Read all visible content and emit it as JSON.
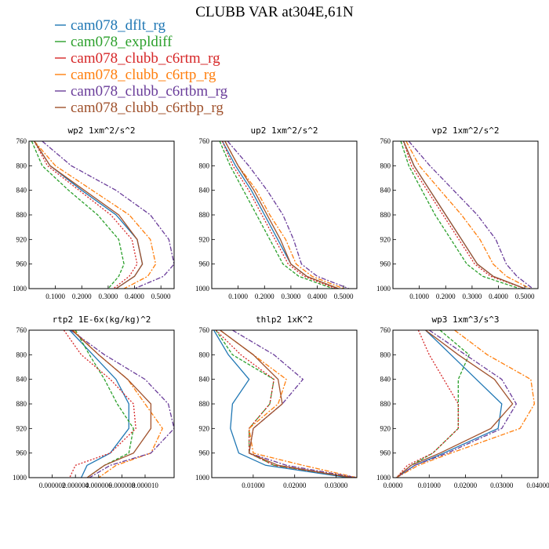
{
  "figure": {
    "title": "CLUBB VAR at304E,61N"
  },
  "legend": [
    {
      "name": "cam078_dflt_rg",
      "color": "#1f77b4",
      "dash": ""
    },
    {
      "name": "cam078_expldiff",
      "color": "#2ca02c",
      "dash": "4,2"
    },
    {
      "name": "cam078_clubb_c6rtm_rg",
      "color": "#d62728",
      "dash": "2,2"
    },
    {
      "name": "cam078_clubb_c6rtp_rg",
      "color": "#ff7f0e",
      "dash": "6,2,2,2"
    },
    {
      "name": "cam078_clubb_c6rtbm_rg",
      "color": "#6a3d9a",
      "dash": "6,2,2,2"
    },
    {
      "name": "cam078_clubb_c6rtbp_rg",
      "color": "#a0522d",
      "dash": ""
    }
  ],
  "chart_data": [
    {
      "type": "line",
      "title": "wp2  1xm^2/s^2",
      "xlim": [
        0,
        0.55
      ],
      "xticks": [
        0.1,
        0.2,
        0.3,
        0.4,
        0.5
      ],
      "xticklabels": [
        "0.1000",
        "0.2000",
        "0.3000",
        "0.4000",
        "0.5000"
      ],
      "ylim": [
        760,
        1000
      ],
      "yticks": [
        760,
        800,
        840,
        880,
        920,
        960,
        1000
      ],
      "y": [
        760,
        800,
        840,
        880,
        920,
        960,
        980,
        1000
      ],
      "series": [
        {
          "name": "cam078_dflt_rg",
          "values": [
            0.02,
            0.08,
            0.2,
            0.33,
            0.41,
            0.43,
            0.4,
            0.33
          ]
        },
        {
          "name": "cam078_expldiff",
          "values": [
            0.01,
            0.05,
            0.15,
            0.26,
            0.34,
            0.36,
            0.34,
            0.3
          ]
        },
        {
          "name": "cam078_clubb_c6rtm_rg",
          "values": [
            0.02,
            0.07,
            0.19,
            0.31,
            0.39,
            0.41,
            0.38,
            0.32
          ]
        },
        {
          "name": "cam078_clubb_c6rtp_rg",
          "values": [
            0.02,
            0.1,
            0.24,
            0.38,
            0.46,
            0.48,
            0.45,
            0.36
          ]
        },
        {
          "name": "cam078_clubb_c6rtbm_rg",
          "values": [
            0.05,
            0.16,
            0.33,
            0.46,
            0.53,
            0.55,
            0.51,
            0.4
          ]
        },
        {
          "name": "cam078_clubb_c6rtbp_rg",
          "values": [
            0.02,
            0.08,
            0.21,
            0.34,
            0.41,
            0.43,
            0.4,
            0.33
          ]
        }
      ]
    },
    {
      "type": "line",
      "title": "up2  1xm^2/s^2",
      "xlim": [
        0,
        0.55
      ],
      "xticks": [
        0.1,
        0.2,
        0.3,
        0.4,
        0.5
      ],
      "xticklabels": [
        "0.1000",
        "0.2000",
        "0.3000",
        "0.4000",
        "0.5000"
      ],
      "ylim": [
        760,
        1000
      ],
      "yticks": [
        760,
        800,
        840,
        880,
        920,
        960,
        1000
      ],
      "y": [
        760,
        800,
        840,
        880,
        920,
        960,
        980,
        1000
      ],
      "series": [
        {
          "name": "cam078_dflt_rg",
          "values": [
            0.04,
            0.09,
            0.15,
            0.2,
            0.25,
            0.3,
            0.36,
            0.48
          ]
        },
        {
          "name": "cam078_expldiff",
          "values": [
            0.03,
            0.07,
            0.12,
            0.17,
            0.22,
            0.27,
            0.33,
            0.46
          ]
        },
        {
          "name": "cam078_clubb_c6rtm_rg",
          "values": [
            0.04,
            0.08,
            0.14,
            0.19,
            0.24,
            0.29,
            0.35,
            0.47
          ]
        },
        {
          "name": "cam078_clubb_c6rtp_rg",
          "values": [
            0.05,
            0.1,
            0.17,
            0.22,
            0.28,
            0.32,
            0.38,
            0.5
          ]
        },
        {
          "name": "cam078_clubb_c6rtbm_rg",
          "values": [
            0.06,
            0.14,
            0.21,
            0.27,
            0.31,
            0.34,
            0.4,
            0.52
          ]
        },
        {
          "name": "cam078_clubb_c6rtbp_rg",
          "values": [
            0.05,
            0.1,
            0.16,
            0.21,
            0.26,
            0.3,
            0.36,
            0.48
          ]
        }
      ]
    },
    {
      "type": "line",
      "title": "vp2  1xm^2/s^2",
      "xlim": [
        0,
        0.55
      ],
      "xticks": [
        0.1,
        0.2,
        0.3,
        0.4,
        0.5
      ],
      "xticklabels": [
        "0.1000",
        "0.2000",
        "0.3000",
        "0.4000",
        "0.5000"
      ],
      "ylim": [
        760,
        1000
      ],
      "yticks": [
        760,
        800,
        840,
        880,
        920,
        960,
        1000
      ],
      "y": [
        760,
        800,
        840,
        880,
        920,
        960,
        980,
        1000
      ],
      "series": [
        {
          "name": "cam078_dflt_rg",
          "values": [
            0.04,
            0.08,
            0.14,
            0.2,
            0.26,
            0.32,
            0.38,
            0.5
          ]
        },
        {
          "name": "cam078_expldiff",
          "values": [
            0.03,
            0.06,
            0.11,
            0.16,
            0.22,
            0.28,
            0.34,
            0.48
          ]
        },
        {
          "name": "cam078_clubb_c6rtm_rg",
          "values": [
            0.04,
            0.07,
            0.13,
            0.19,
            0.25,
            0.31,
            0.37,
            0.5
          ]
        },
        {
          "name": "cam078_clubb_c6rtp_rg",
          "values": [
            0.05,
            0.1,
            0.18,
            0.26,
            0.33,
            0.38,
            0.43,
            0.52
          ]
        },
        {
          "name": "cam078_clubb_c6rtbm_rg",
          "values": [
            0.06,
            0.14,
            0.23,
            0.32,
            0.39,
            0.43,
            0.47,
            0.53
          ]
        },
        {
          "name": "cam078_clubb_c6rtbp_rg",
          "values": [
            0.04,
            0.08,
            0.14,
            0.2,
            0.26,
            0.32,
            0.38,
            0.5
          ]
        }
      ]
    },
    {
      "type": "line",
      "title": "rtp2  1E-6x(kg/kg)^2",
      "xlim": [
        0,
        1.25e-05
      ],
      "xticks": [
        2e-06,
        4e-06,
        6e-06,
        8e-06,
        1e-05
      ],
      "xticklabels": [
        "0.000002",
        "0.000004",
        "0.000006",
        "0.000008",
        "0.000010"
      ],
      "ylim": [
        760,
        1000
      ],
      "yticks": [
        760,
        800,
        840,
        880,
        920,
        960,
        1000
      ],
      "y": [
        760,
        800,
        840,
        880,
        920,
        960,
        980,
        1000
      ],
      "series": [
        {
          "name": "cam078_dflt_rg",
          "values": [
            3.5e-06,
            5.5e-06,
            7.5e-06,
            8.6e-06,
            8.6e-06,
            7e-06,
            5e-06,
            4.5e-06
          ]
        },
        {
          "name": "cam078_expldiff",
          "values": [
            4e-06,
            5.2e-06,
            6.5e-06,
            7.6e-06,
            9e-06,
            8.6e-06,
            6.5e-06,
            5e-06
          ]
        },
        {
          "name": "cam078_clubb_c6rtm_rg",
          "values": [
            3e-06,
            4.5e-06,
            7e-06,
            9e-06,
            9.2e-06,
            7e-06,
            4e-06,
            3.5e-06
          ]
        },
        {
          "name": "cam078_clubb_c6rtp_rg",
          "values": [
            3.8e-06,
            6e-06,
            8.5e-06,
            1e-05,
            1.15e-05,
            1.05e-05,
            7.5e-06,
            6e-06
          ]
        },
        {
          "name": "cam078_clubb_c6rtbm_rg",
          "values": [
            3.6e-06,
            6.5e-06,
            1e-05,
            1.2e-05,
            1.25e-05,
            1.05e-05,
            7e-06,
            5.2e-06
          ]
        },
        {
          "name": "cam078_clubb_c6rtbp_rg",
          "values": [
            3.7e-06,
            6e-06,
            8.5e-06,
            1.05e-05,
            1.05e-05,
            9e-06,
            6.5e-06,
            5e-06
          ]
        }
      ]
    },
    {
      "type": "line",
      "title": "thlp2  1xK^2",
      "xlim": [
        0,
        0.035
      ],
      "xticks": [
        0.01,
        0.02,
        0.03
      ],
      "xticklabels": [
        "0.01000",
        "0.02000",
        "0.03000"
      ],
      "ylim": [
        760,
        1000
      ],
      "yticks": [
        760,
        800,
        840,
        880,
        920,
        960,
        1000
      ],
      "y": [
        760,
        800,
        840,
        880,
        920,
        960,
        980,
        1000
      ],
      "series": [
        {
          "name": "cam078_dflt_rg",
          "values": [
            0.0005,
            0.004,
            0.009,
            0.005,
            0.0045,
            0.0065,
            0.013,
            0.033
          ]
        },
        {
          "name": "cam078_expldiff",
          "values": [
            0.001,
            0.005,
            0.015,
            0.014,
            0.009,
            0.009,
            0.015,
            0.034
          ]
        },
        {
          "name": "cam078_clubb_c6rtm_rg",
          "values": [
            0.001,
            0.007,
            0.015,
            0.014,
            0.009,
            0.009,
            0.015,
            0.034
          ]
        },
        {
          "name": "cam078_clubb_c6rtp_rg",
          "values": [
            0.002,
            0.01,
            0.018,
            0.016,
            0.009,
            0.01,
            0.022,
            0.035
          ]
        },
        {
          "name": "cam078_clubb_c6rtbm_rg",
          "values": [
            0.005,
            0.015,
            0.022,
            0.017,
            0.01,
            0.009,
            0.018,
            0.035
          ]
        },
        {
          "name": "cam078_clubb_c6rtbp_rg",
          "values": [
            0.002,
            0.01,
            0.016,
            0.017,
            0.01,
            0.009,
            0.016,
            0.034
          ]
        }
      ]
    },
    {
      "type": "line",
      "title": "wp3  1xm^3/s^3",
      "xlim": [
        0,
        0.04
      ],
      "xticks": [
        0,
        0.01,
        0.02,
        0.03,
        0.04
      ],
      "xticklabels": [
        "0.0000",
        "0.01000",
        "0.02000",
        "0.03000",
        "0.04000"
      ],
      "ylim": [
        760,
        1000
      ],
      "yticks": [
        760,
        800,
        840,
        880,
        920,
        960,
        1000
      ],
      "y": [
        760,
        800,
        840,
        880,
        920,
        960,
        980,
        1000
      ],
      "series": [
        {
          "name": "cam078_dflt_rg",
          "values": [
            0.009,
            0.016,
            0.023,
            0.03,
            0.029,
            0.014,
            0.006,
            0.001
          ]
        },
        {
          "name": "cam078_expldiff",
          "values": [
            0.013,
            0.021,
            0.018,
            0.018,
            0.018,
            0.011,
            0.005,
            0.001
          ]
        },
        {
          "name": "cam078_clubb_c6rtm_rg",
          "values": [
            0.007,
            0.01,
            0.014,
            0.018,
            0.018,
            0.011,
            0.004,
            0.001
          ]
        },
        {
          "name": "cam078_clubb_c6rtp_rg",
          "values": [
            0.017,
            0.026,
            0.038,
            0.039,
            0.035,
            0.016,
            0.007,
            0.001
          ]
        },
        {
          "name": "cam078_clubb_c6rtbm_rg",
          "values": [
            0.01,
            0.02,
            0.03,
            0.034,
            0.03,
            0.015,
            0.006,
            0.001
          ]
        },
        {
          "name": "cam078_clubb_c6rtbp_rg",
          "values": [
            0.009,
            0.018,
            0.028,
            0.033,
            0.027,
            0.013,
            0.005,
            0.001
          ]
        }
      ]
    }
  ]
}
